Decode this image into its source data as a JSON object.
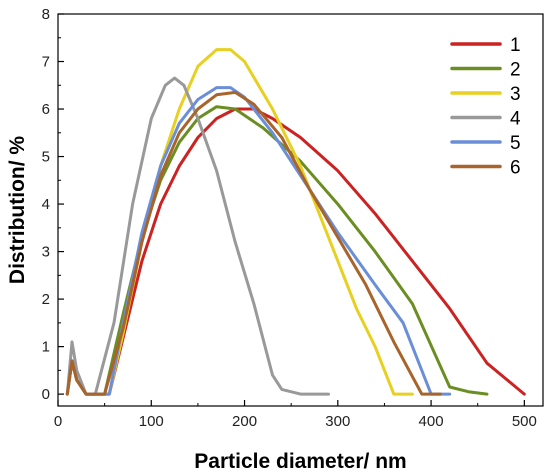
{
  "chart_data": {
    "type": "line",
    "title": "",
    "xlabel": "Particle diameter/ nm",
    "ylabel": "Distribution/ %",
    "xlim": [
      0,
      520
    ],
    "ylim": [
      -0.25,
      8
    ],
    "xticks": [
      0,
      100,
      200,
      300,
      400,
      500
    ],
    "yticks": [
      0,
      1,
      2,
      3,
      4,
      5,
      6,
      7,
      8
    ],
    "grid": false,
    "legend_position": "top-right",
    "series": [
      {
        "name": "1",
        "color": "#cc2222",
        "points": [
          [
            10,
            0
          ],
          [
            15,
            0.7
          ],
          [
            20,
            0.3
          ],
          [
            30,
            0
          ],
          [
            55,
            0
          ],
          [
            70,
            1.2
          ],
          [
            90,
            2.8
          ],
          [
            110,
            4.0
          ],
          [
            130,
            4.8
          ],
          [
            150,
            5.4
          ],
          [
            170,
            5.8
          ],
          [
            190,
            6.0
          ],
          [
            210,
            6.0
          ],
          [
            230,
            5.8
          ],
          [
            260,
            5.4
          ],
          [
            300,
            4.7
          ],
          [
            340,
            3.8
          ],
          [
            380,
            2.8
          ],
          [
            420,
            1.8
          ],
          [
            460,
            0.65
          ],
          [
            500,
            0
          ]
        ]
      },
      {
        "name": "2",
        "color": "#6b8e23",
        "points": [
          [
            10,
            0
          ],
          [
            15,
            0.7
          ],
          [
            20,
            0.3
          ],
          [
            30,
            0
          ],
          [
            50,
            0
          ],
          [
            70,
            1.7
          ],
          [
            90,
            3.3
          ],
          [
            110,
            4.5
          ],
          [
            130,
            5.3
          ],
          [
            150,
            5.8
          ],
          [
            170,
            6.05
          ],
          [
            190,
            6.0
          ],
          [
            220,
            5.6
          ],
          [
            260,
            4.9
          ],
          [
            300,
            4.0
          ],
          [
            340,
            3.0
          ],
          [
            380,
            1.9
          ],
          [
            420,
            0.15
          ],
          [
            440,
            0.05
          ],
          [
            460,
            0
          ]
        ]
      },
      {
        "name": "3",
        "color": "#e8d020",
        "points": [
          [
            10,
            0
          ],
          [
            15,
            0.7
          ],
          [
            20,
            0.3
          ],
          [
            30,
            0
          ],
          [
            55,
            0
          ],
          [
            70,
            1.3
          ],
          [
            90,
            3.2
          ],
          [
            110,
            4.8
          ],
          [
            130,
            6.0
          ],
          [
            150,
            6.9
          ],
          [
            170,
            7.25
          ],
          [
            185,
            7.25
          ],
          [
            200,
            7.0
          ],
          [
            230,
            6.0
          ],
          [
            260,
            4.8
          ],
          [
            290,
            3.3
          ],
          [
            320,
            1.8
          ],
          [
            340,
            1.0
          ],
          [
            360,
            0
          ],
          [
            380,
            0
          ]
        ]
      },
      {
        "name": "4",
        "color": "#999999",
        "points": [
          [
            10,
            0
          ],
          [
            15,
            1.1
          ],
          [
            20,
            0.5
          ],
          [
            30,
            0
          ],
          [
            40,
            0
          ],
          [
            60,
            1.5
          ],
          [
            80,
            4.0
          ],
          [
            100,
            5.8
          ],
          [
            115,
            6.5
          ],
          [
            125,
            6.65
          ],
          [
            135,
            6.5
          ],
          [
            150,
            5.8
          ],
          [
            170,
            4.7
          ],
          [
            190,
            3.2
          ],
          [
            210,
            1.9
          ],
          [
            230,
            0.4
          ],
          [
            240,
            0.1
          ],
          [
            260,
            0
          ],
          [
            290,
            0
          ]
        ]
      },
      {
        "name": "5",
        "color": "#6a8fd8",
        "points": [
          [
            10,
            0
          ],
          [
            15,
            0.7
          ],
          [
            20,
            0.3
          ],
          [
            30,
            0
          ],
          [
            55,
            0
          ],
          [
            70,
            1.5
          ],
          [
            90,
            3.4
          ],
          [
            110,
            4.8
          ],
          [
            130,
            5.7
          ],
          [
            150,
            6.2
          ],
          [
            170,
            6.45
          ],
          [
            185,
            6.45
          ],
          [
            200,
            6.25
          ],
          [
            230,
            5.5
          ],
          [
            260,
            4.6
          ],
          [
            300,
            3.4
          ],
          [
            340,
            2.3
          ],
          [
            370,
            1.5
          ],
          [
            400,
            0
          ],
          [
            420,
            0
          ]
        ]
      },
      {
        "name": "6",
        "color": "#a8642a",
        "points": [
          [
            10,
            0
          ],
          [
            15,
            0.7
          ],
          [
            20,
            0.3
          ],
          [
            30,
            0
          ],
          [
            50,
            0
          ],
          [
            70,
            1.4
          ],
          [
            90,
            3.2
          ],
          [
            110,
            4.6
          ],
          [
            130,
            5.5
          ],
          [
            150,
            6.0
          ],
          [
            170,
            6.3
          ],
          [
            190,
            6.35
          ],
          [
            210,
            6.1
          ],
          [
            240,
            5.4
          ],
          [
            270,
            4.3
          ],
          [
            300,
            3.3
          ],
          [
            330,
            2.3
          ],
          [
            360,
            1.1
          ],
          [
            390,
            0
          ],
          [
            410,
            0
          ]
        ]
      }
    ]
  }
}
